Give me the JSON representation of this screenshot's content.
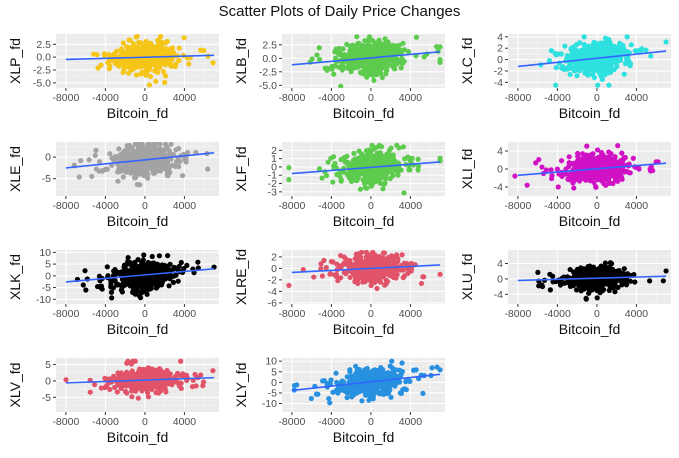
{
  "figure": {
    "title": "Scatter Plots of Daily Price Changes"
  },
  "chart_data": [
    {
      "type": "scatter",
      "xlabel": "Bitcoin_fd",
      "ylabel": "XLP_fd",
      "color": "#F5C518",
      "xlim": [
        -9000,
        7500
      ],
      "xticks": [
        -8000,
        -4000,
        0,
        4000
      ],
      "ylim": [
        -6,
        4.5
      ],
      "yticks": [
        -5.0,
        -2.5,
        0.0,
        2.5
      ],
      "ytick_decimals": 1,
      "trend": {
        "x": [
          -8000,
          7000
        ],
        "y": [
          -0.45,
          0.35
        ]
      },
      "spread": 1.2,
      "yclip": [
        -5.4,
        4.0
      ]
    },
    {
      "type": "scatter",
      "xlabel": "Bitcoin_fd",
      "ylabel": "XLB_fd",
      "color": "#5DCB4E",
      "xlim": [
        -9000,
        7500
      ],
      "xticks": [
        -8000,
        -4000,
        0,
        4000
      ],
      "ylim": [
        -5.5,
        4.5
      ],
      "yticks": [
        -5.0,
        -2.5,
        0.0,
        2.5
      ],
      "ytick_decimals": 1,
      "trend": {
        "x": [
          -8000,
          7000
        ],
        "y": [
          -1.2,
          1.2
        ]
      },
      "spread": 1.3,
      "yclip": [
        -5.2,
        4.0
      ]
    },
    {
      "type": "scatter",
      "xlabel": "Bitcoin_fd",
      "ylabel": "XLC_fd",
      "color": "#2EE0E0",
      "xlim": [
        -9000,
        7500
      ],
      "xticks": [
        -8000,
        -4000,
        0,
        4000
      ],
      "ylim": [
        -5,
        4.5
      ],
      "yticks": [
        -4,
        -2,
        0,
        2,
        4
      ],
      "ytick_decimals": 0,
      "trend": {
        "x": [
          -8000,
          7000
        ],
        "y": [
          -1.2,
          1.5
        ]
      },
      "spread": 1.2,
      "yclip": [
        -4.5,
        4.0
      ]
    },
    {
      "type": "scatter",
      "xlabel": "Bitcoin_fd",
      "ylabel": "XLE_fd",
      "color": "#A3A3A3",
      "xlim": [
        -9000,
        7500
      ],
      "xticks": [
        -8000,
        -4000,
        0,
        4000
      ],
      "ylim": [
        -9,
        3.5
      ],
      "yticks": [
        -5,
        0
      ],
      "ytick_decimals": 0,
      "trend": {
        "x": [
          -8000,
          7000
        ],
        "y": [
          -2.5,
          1.0
        ]
      },
      "spread": 1.6,
      "yclip": [
        -8.5,
        3.0
      ]
    },
    {
      "type": "scatter",
      "xlabel": "Bitcoin_fd",
      "ylabel": "XLF_fd",
      "color": "#5DCB4E",
      "xlim": [
        -9000,
        7500
      ],
      "xticks": [
        -8000,
        -4000,
        0,
        4000
      ],
      "ylim": [
        -3.5,
        3
      ],
      "yticks": [
        -3,
        -2,
        -1,
        0,
        1,
        2
      ],
      "ytick_decimals": 0,
      "trend": {
        "x": [
          -8000,
          7000
        ],
        "y": [
          -0.8,
          0.6
        ]
      },
      "spread": 0.8,
      "yclip": [
        -3.2,
        2.6
      ]
    },
    {
      "type": "scatter",
      "xlabel": "Bitcoin_fd",
      "ylabel": "XLI_fd",
      "color": "#D011C4",
      "xlim": [
        -9000,
        7500
      ],
      "xticks": [
        -8000,
        -4000,
        0,
        4000
      ],
      "ylim": [
        -6,
        6
      ],
      "yticks": [
        -4,
        0,
        4
      ],
      "ytick_decimals": 0,
      "trend": {
        "x": [
          -8000,
          7000
        ],
        "y": [
          -1.4,
          1.3
        ]
      },
      "spread": 1.3,
      "yclip": [
        -5.5,
        5.2
      ]
    },
    {
      "type": "scatter",
      "xlabel": "Bitcoin_fd",
      "ylabel": "XLK_fd",
      "color": "#000000",
      "xlim": [
        -9000,
        7500
      ],
      "xticks": [
        -8000,
        -4000,
        0,
        4000
      ],
      "ylim": [
        -12,
        11
      ],
      "yticks": [
        -10,
        -5,
        0,
        5,
        10
      ],
      "ytick_decimals": 0,
      "trend": {
        "x": [
          -8000,
          7000
        ],
        "y": [
          -2.6,
          3.0
        ]
      },
      "spread": 2.5,
      "yclip": [
        -11,
        10
      ]
    },
    {
      "type": "scatter",
      "xlabel": "Bitcoin_fd",
      "ylabel": "XLRE_fd",
      "color": "#E15368",
      "xlim": [
        -9000,
        7500
      ],
      "xticks": [
        -8000,
        -4000,
        0,
        4000
      ],
      "ylim": [
        -6.2,
        3.2
      ],
      "yticks": [
        -6,
        -4,
        -2,
        0,
        2
      ],
      "ytick_decimals": 0,
      "trend": {
        "x": [
          -8000,
          7000
        ],
        "y": [
          -0.7,
          0.6
        ]
      },
      "spread": 1.0,
      "yclip": [
        -5.8,
        2.8
      ]
    },
    {
      "type": "scatter",
      "xlabel": "Bitcoin_fd",
      "ylabel": "XLU_fd",
      "color": "#000000",
      "xlim": [
        -9000,
        7500
      ],
      "xticks": [
        -8000,
        -4000,
        0,
        4000
      ],
      "ylim": [
        -6.5,
        7.5
      ],
      "yticks": [
        -4,
        0,
        4
      ],
      "ytick_decimals": 0,
      "trend": {
        "x": [
          -8000,
          7000
        ],
        "y": [
          -0.4,
          0.7
        ]
      },
      "spread": 1.2,
      "yclip": [
        -6,
        6.8
      ]
    },
    {
      "type": "scatter",
      "xlabel": "Bitcoin_fd",
      "ylabel": "XLV_fd",
      "color": "#E15368",
      "xlim": [
        -9000,
        7500
      ],
      "xticks": [
        -8000,
        -4000,
        0,
        4000
      ],
      "ylim": [
        -9.5,
        7
      ],
      "yticks": [
        -5,
        0,
        5
      ],
      "ytick_decimals": 0,
      "trend": {
        "x": [
          -8000,
          7000
        ],
        "y": [
          -0.6,
          1.0
        ]
      },
      "spread": 1.5,
      "yclip": [
        -9,
        6
      ]
    },
    {
      "type": "scatter",
      "xlabel": "Bitcoin_fd",
      "ylabel": "XLY_fd",
      "color": "#2791E0",
      "xlim": [
        -9000,
        7500
      ],
      "xticks": [
        -8000,
        -4000,
        0,
        4000
      ],
      "ylim": [
        -14,
        11.5
      ],
      "yticks": [
        -10,
        -5,
        0,
        5,
        10
      ],
      "ytick_decimals": 0,
      "trend": {
        "x": [
          -8000,
          7000
        ],
        "y": [
          -3.8,
          3.8
        ]
      },
      "spread": 2.8,
      "yclip": [
        -13,
        10
      ]
    }
  ]
}
